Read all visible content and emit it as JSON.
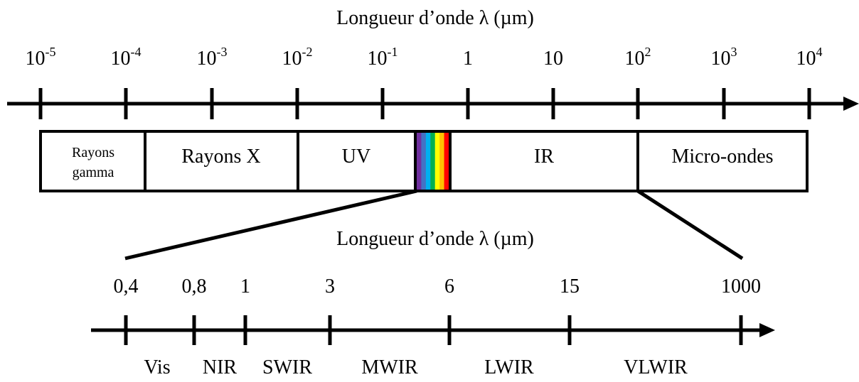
{
  "top_axis": {
    "title": "Longueur d’onde λ (µm)",
    "ticks": [
      {
        "base": "10",
        "exp": "-5"
      },
      {
        "base": "10",
        "exp": "-4"
      },
      {
        "base": "10",
        "exp": "-3"
      },
      {
        "base": "10",
        "exp": "-2"
      },
      {
        "base": "10",
        "exp": "-1"
      },
      {
        "base": "1",
        "exp": ""
      },
      {
        "base": "10",
        "exp": ""
      },
      {
        "base": "10",
        "exp": "2"
      },
      {
        "base": "10",
        "exp": "3"
      },
      {
        "base": "10",
        "exp": "4"
      }
    ]
  },
  "bands": [
    {
      "id": "gamma",
      "label_line1": "Rayons",
      "label_line2": "gamma"
    },
    {
      "id": "xray",
      "label": "Rayons X"
    },
    {
      "id": "uv",
      "label": "UV"
    },
    {
      "id": "visible",
      "colors": [
        "#7030a0",
        "#4472c4",
        "#00b0f0",
        "#00b050",
        "#ffff00",
        "#ffc000",
        "#ff0000"
      ]
    },
    {
      "id": "ir",
      "label": "IR"
    },
    {
      "id": "microwave",
      "label": "Micro-ondes"
    }
  ],
  "bottom_axis": {
    "title": "Longueur d’onde λ (µm)",
    "ticks": [
      "0,4",
      "0,8",
      "1",
      "3",
      "6",
      "15",
      "1000"
    ],
    "regions": [
      "Vis",
      "NIR",
      "SWIR",
      "MWIR",
      "LWIR",
      "VLWIR"
    ]
  }
}
